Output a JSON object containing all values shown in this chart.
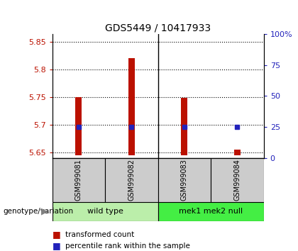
{
  "title": "GDS5449 / 10417933",
  "samples": [
    "GSM999081",
    "GSM999082",
    "GSM999083",
    "GSM999084"
  ],
  "transformed_counts": [
    5.75,
    5.821,
    5.749,
    5.656
  ],
  "percentile_ranks": [
    25,
    25,
    25,
    25
  ],
  "ylim_left": [
    5.64,
    5.865
  ],
  "ylim_right": [
    0,
    100
  ],
  "yticks_left": [
    5.65,
    5.7,
    5.75,
    5.8,
    5.85
  ],
  "yticks_right": [
    0,
    25,
    50,
    75,
    100
  ],
  "ytick_labels_left": [
    "5.65",
    "5.7",
    "5.75",
    "5.8",
    "5.85"
  ],
  "ytick_labels_right": [
    "0",
    "25",
    "50",
    "75",
    "100%"
  ],
  "bar_color": "#BB1100",
  "dot_color": "#2222BB",
  "bar_bottom": 5.645,
  "groups": [
    {
      "label": "wild type",
      "color": "#BBEEAA"
    },
    {
      "label": "mek1 mek2 null",
      "color": "#44CC44"
    }
  ],
  "group_label": "genotype/variation",
  "legend_items": [
    {
      "color": "#BB1100",
      "label": "transformed count"
    },
    {
      "color": "#2222BB",
      "label": "percentile rank within the sample"
    }
  ],
  "bar_width": 0.12,
  "background_color": "#ffffff",
  "panel_bg": "#cccccc",
  "group_bg_wt": "#BBEEAA",
  "group_bg_mek": "#44EE44"
}
